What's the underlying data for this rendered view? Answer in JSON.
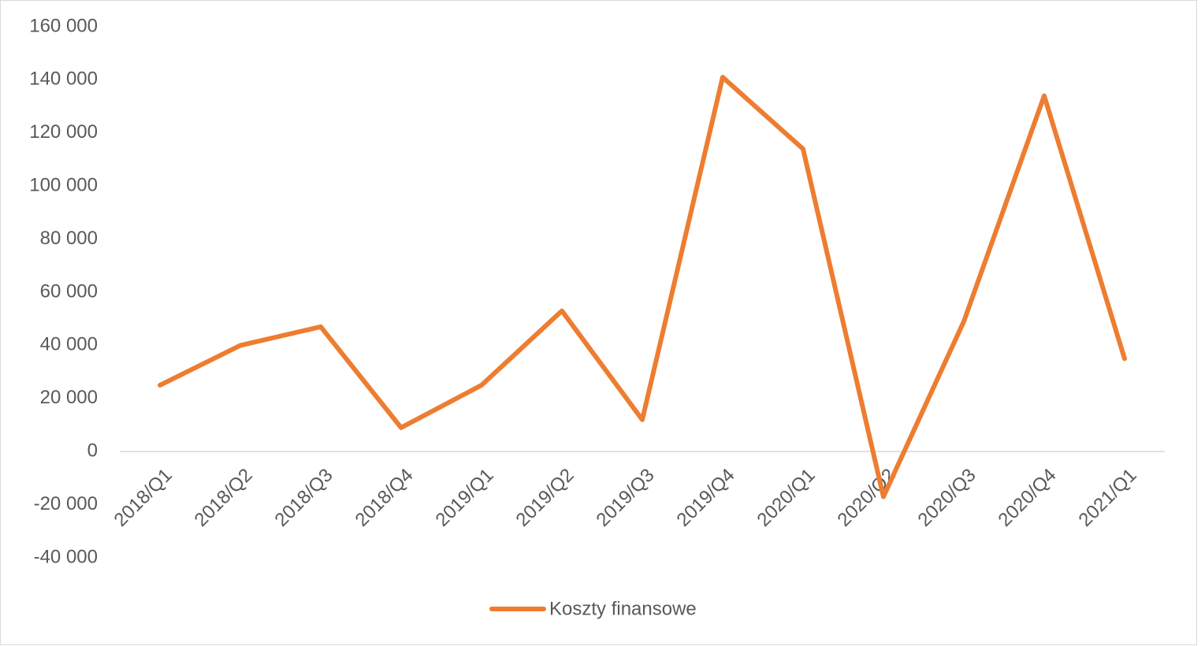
{
  "chart_data": {
    "type": "line",
    "categories": [
      "2018/Q1",
      "2018/Q2",
      "2018/Q3",
      "2018/Q4",
      "2019/Q1",
      "2019/Q2",
      "2019/Q3",
      "2019/Q4",
      "2020/Q1",
      "2020/Q2",
      "2020/Q3",
      "2020/Q4",
      "2021/Q1"
    ],
    "series": [
      {
        "name": "Koszty finansowe",
        "color": "#ed7d31",
        "values": [
          25000,
          40000,
          47000,
          9000,
          25000,
          53000,
          12000,
          141000,
          114000,
          -17000,
          49000,
          134000,
          35000
        ]
      }
    ],
    "ylim": [
      -40000,
      160000
    ],
    "yticks": [
      {
        "value": -40000,
        "label": "-40 000"
      },
      {
        "value": -20000,
        "label": "-20 000"
      },
      0,
      {
        "value": 20000,
        "label": "20 000"
      },
      {
        "value": 40000,
        "label": "40 000"
      },
      {
        "value": 60000,
        "label": "60 000"
      },
      {
        "value": 80000,
        "label": "80 000"
      },
      {
        "value": 100000,
        "label": "100 000"
      },
      {
        "value": 120000,
        "label": "120 000"
      },
      {
        "value": 140000,
        "label": "140 000"
      },
      {
        "value": 160000,
        "label": "160 000"
      }
    ],
    "grid": false,
    "legend": "bottom"
  }
}
